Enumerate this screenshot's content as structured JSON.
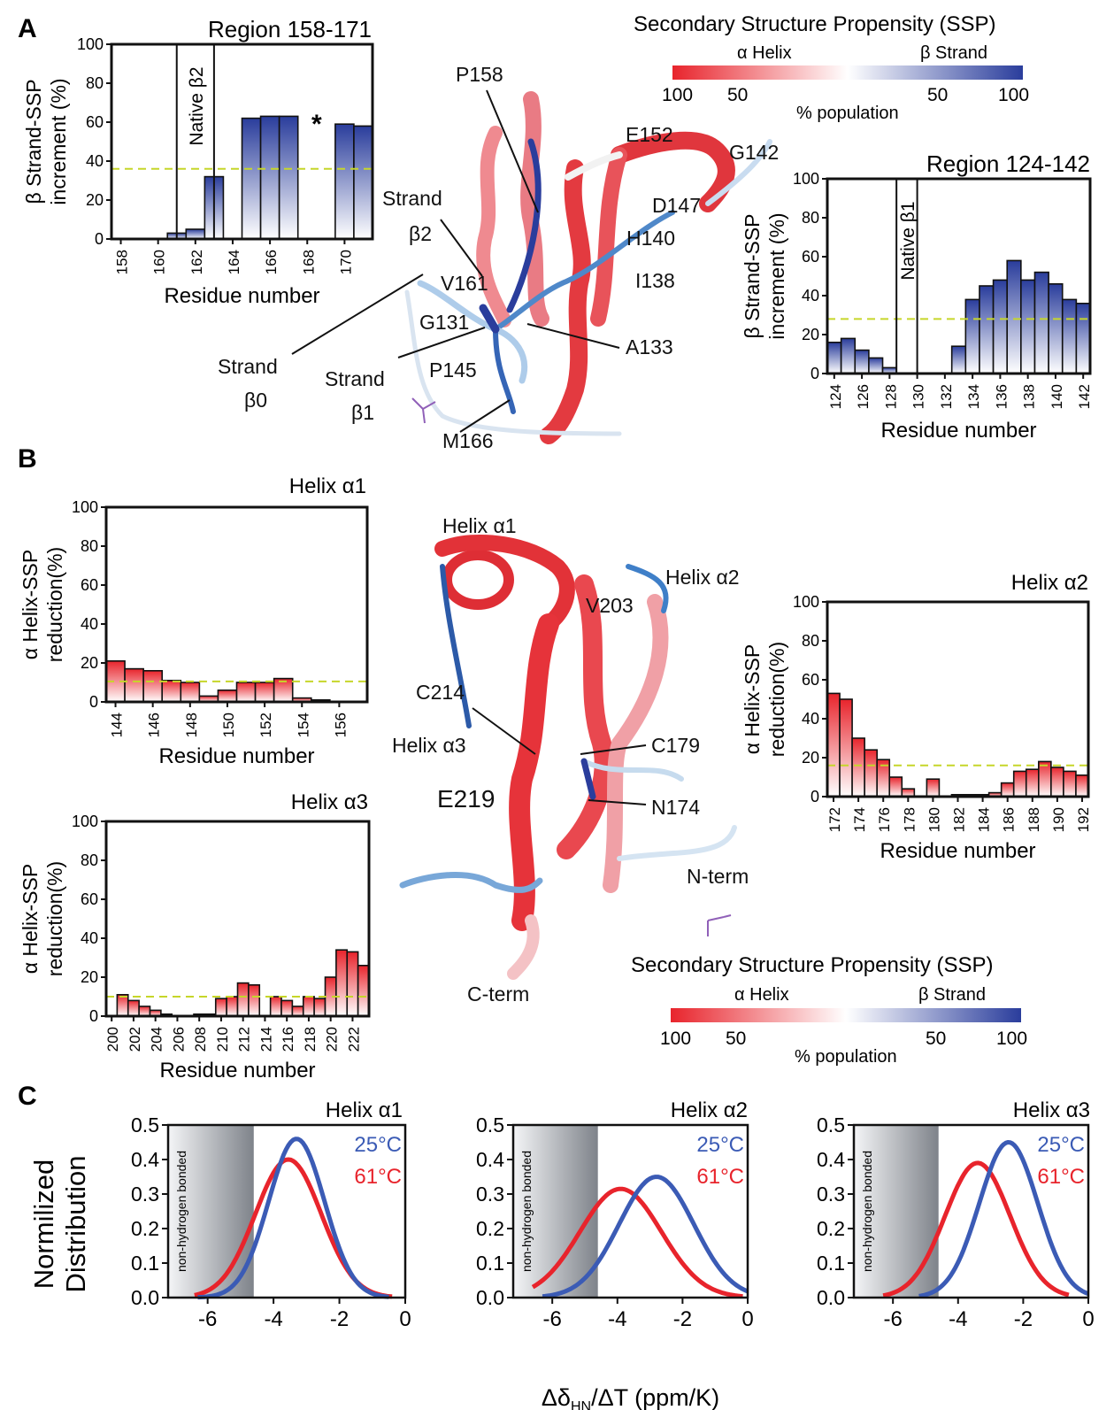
{
  "panel_labels": [
    "A",
    "B",
    "C"
  ],
  "ssp_legend": {
    "title": "Secondary Structure Propensity (SSP)",
    "alpha_label": "α Helix",
    "beta_label": "β Strand",
    "ticks": [
      "100",
      "50",
      "50",
      "100"
    ],
    "population_label": "% population",
    "colors": {
      "helix": "#e8242c",
      "strand": "#2a3d9c",
      "neutral": "#ffffff"
    }
  },
  "structure_labels": {
    "panel_a": [
      "P158",
      "E152",
      "G142",
      "Strand",
      "β2",
      "D147",
      "H140",
      "V161",
      "I138",
      "G131",
      "A133",
      "Strand",
      "β0",
      "P145",
      "Strand",
      "β1",
      "M166"
    ],
    "panel_b": [
      "Helix α1",
      "Helix α2",
      "V203",
      "C214",
      "Helix α3",
      "C179",
      "E219",
      "N174",
      "N-term",
      "C-term"
    ]
  },
  "chart_data": [
    {
      "id": "A-region-158-171",
      "type": "bar",
      "title": "Region 158-171",
      "xlabel": "Residue number",
      "ylabel": "β Strand-SSP increment (%)",
      "x_ticks": [
        "158",
        "160",
        "162",
        "164",
        "166",
        "168",
        "170"
      ],
      "ylim": [
        0,
        100
      ],
      "y_ticks": [
        "0",
        "20",
        "40",
        "60",
        "80",
        "100"
      ],
      "xlim": [
        157.5,
        171.5
      ],
      "x": [
        161,
        162,
        163,
        165,
        166,
        167,
        170,
        171
      ],
      "values": [
        3,
        5,
        32,
        62,
        63,
        63,
        59,
        58
      ],
      "threshold": 36,
      "annotation": "*",
      "annotation_x": 168.5,
      "native_region": {
        "label": "Native β2",
        "from": 161,
        "to": 163
      },
      "bar_color": "#2a3d9c"
    },
    {
      "id": "A-region-124-142",
      "type": "bar",
      "title": "Region 124-142",
      "xlabel": "Residue number",
      "ylabel": "β Strand-SSP increment (%)",
      "x_ticks": [
        "124",
        "126",
        "128",
        "130",
        "132",
        "134",
        "136",
        "138",
        "140",
        "142"
      ],
      "ylim": [
        0,
        100
      ],
      "y_ticks": [
        "0",
        "20",
        "40",
        "60",
        "80",
        "100"
      ],
      "xlim": [
        123.5,
        142.5
      ],
      "x": [
        124,
        125,
        126,
        127,
        128,
        129,
        130,
        131,
        132,
        133,
        134,
        135,
        136,
        137,
        138,
        139,
        140,
        141,
        142
      ],
      "values": [
        16,
        18,
        12,
        8,
        3,
        0,
        0,
        0,
        0,
        14,
        38,
        45,
        48,
        58,
        48,
        52,
        46,
        38,
        36
      ],
      "threshold": 28,
      "native_region": {
        "label": "Native β1",
        "from": 128.5,
        "to": 130
      },
      "bar_color": "#2a3d9c"
    },
    {
      "id": "B-helix-a1",
      "type": "bar",
      "title": "Helix α1",
      "xlabel": "Residue number",
      "ylabel": "α Helix-SSP reduction(%)",
      "x_ticks": [
        "144",
        "146",
        "148",
        "150",
        "152",
        "154",
        "156"
      ],
      "ylim": [
        0,
        100
      ],
      "y_ticks": [
        "0",
        "20",
        "40",
        "60",
        "80",
        "100"
      ],
      "xlim": [
        143.5,
        157.5
      ],
      "x": [
        144,
        145,
        146,
        147,
        148,
        149,
        150,
        151,
        152,
        153,
        154,
        155
      ],
      "values": [
        21,
        17,
        16,
        11,
        10,
        3,
        6,
        10,
        10,
        12,
        2,
        1
      ],
      "threshold": 10.5,
      "bar_color": "#e8242c"
    },
    {
      "id": "B-helix-a2",
      "type": "bar",
      "title": "Helix α2",
      "xlabel": "Residue number",
      "ylabel": "α Helix-SSP reduction(%)",
      "x_ticks": [
        "172",
        "174",
        "176",
        "178",
        "180",
        "182",
        "184",
        "186",
        "188",
        "190",
        "192"
      ],
      "ylim": [
        0,
        100
      ],
      "y_ticks": [
        "0",
        "20",
        "40",
        "60",
        "80",
        "100"
      ],
      "xlim": [
        171.5,
        192.5
      ],
      "x": [
        172,
        173,
        174,
        175,
        176,
        177,
        178,
        179,
        180,
        181,
        182,
        183,
        184,
        185,
        186,
        187,
        188,
        189,
        190,
        191,
        192
      ],
      "values": [
        53,
        50,
        30,
        24,
        19,
        10,
        4,
        0,
        9,
        0,
        1,
        1,
        1,
        2,
        7,
        13,
        14,
        18,
        15,
        13,
        11
      ],
      "threshold": 16,
      "bar_color": "#e8242c"
    },
    {
      "id": "B-helix-a3",
      "type": "bar",
      "title": "Helix α3",
      "xlabel": "Residue number",
      "ylabel": "α Helix-SSP reduction(%)",
      "x_ticks": [
        "200",
        "202",
        "204",
        "206",
        "208",
        "210",
        "212",
        "214",
        "216",
        "218",
        "220",
        "222"
      ],
      "ylim": [
        0,
        100
      ],
      "y_ticks": [
        "0",
        "20",
        "40",
        "60",
        "80",
        "100"
      ],
      "xlim": [
        199.5,
        223.5
      ],
      "x": [
        201,
        202,
        203,
        204,
        205,
        206,
        207,
        208,
        209,
        210,
        211,
        212,
        213,
        214,
        215,
        216,
        217,
        218,
        219,
        220,
        221,
        222,
        223
      ],
      "values": [
        11,
        8,
        5,
        3,
        1,
        0,
        0,
        1,
        1,
        9,
        10,
        17,
        16,
        0,
        10,
        8,
        5,
        10,
        9,
        20,
        34,
        33,
        26
      ],
      "threshold": 10,
      "bar_color": "#e8242c"
    },
    {
      "id": "C-helix-a1",
      "type": "line",
      "title": "Helix α1",
      "xlabel": "",
      "ylabel": "Normilized Distribution",
      "x_ticks": [
        "-6",
        "-4",
        "-2",
        "0"
      ],
      "y_ticks": [
        "0.0",
        "0.1",
        "0.2",
        "0.3",
        "0.4",
        "0.5"
      ],
      "xlim": [
        -7.2,
        0
      ],
      "ylim": [
        0,
        0.5
      ],
      "shaded_region": {
        "label": "non-hydrogen bonded",
        "from": -7.2,
        "to": -4.6
      },
      "series": [
        {
          "name": "25°C",
          "color": "#3b5bb5",
          "mean": -3.3,
          "sd": 0.85,
          "peak": 0.46,
          "from": -6.3,
          "to": -0.5
        },
        {
          "name": "61°C",
          "color": "#e8242c",
          "mean": -3.55,
          "sd": 1.0,
          "peak": 0.4,
          "from": -6.4,
          "to": -0.4
        }
      ]
    },
    {
      "id": "C-helix-a2",
      "type": "line",
      "title": "Helix α2",
      "xlabel": "ΔδHN/ΔT (ppm/K)",
      "ylabel": "",
      "x_ticks": [
        "-6",
        "-4",
        "-2",
        "0"
      ],
      "y_ticks": [
        "0.0",
        "0.1",
        "0.2",
        "0.3",
        "0.4",
        "0.5"
      ],
      "xlim": [
        -7.2,
        0
      ],
      "ylim": [
        0,
        0.5
      ],
      "shaded_region": {
        "label": "non-hydrogen bonded",
        "from": -7.2,
        "to": -4.6
      },
      "series": [
        {
          "name": "25°C",
          "color": "#3b5bb5",
          "mean": -2.8,
          "sd": 1.15,
          "peak": 0.35,
          "from": -6.3,
          "to": 0
        },
        {
          "name": "61°C",
          "color": "#e8242c",
          "mean": -3.9,
          "sd": 1.25,
          "peak": 0.315,
          "from": -6.6,
          "to": -0.15
        }
      ]
    },
    {
      "id": "C-helix-a3",
      "type": "line",
      "title": "Helix α3",
      "xlabel": "",
      "ylabel": "",
      "x_ticks": [
        "-6",
        "-4",
        "-2",
        "0"
      ],
      "y_ticks": [
        "0.0",
        "0.1",
        "0.2",
        "0.3",
        "0.4",
        "0.5"
      ],
      "xlim": [
        -7.2,
        0
      ],
      "ylim": [
        0,
        0.5
      ],
      "shaded_region": {
        "label": "non-hydrogen bonded",
        "from": -7.2,
        "to": -4.6
      },
      "series": [
        {
          "name": "25°C",
          "color": "#3b5bb5",
          "mean": -2.45,
          "sd": 0.9,
          "peak": 0.45,
          "from": -5.2,
          "to": 0
        },
        {
          "name": "61°C",
          "color": "#e8242c",
          "mean": -3.4,
          "sd": 1.0,
          "peak": 0.39,
          "from": -6.3,
          "to": -0.6
        }
      ]
    }
  ]
}
